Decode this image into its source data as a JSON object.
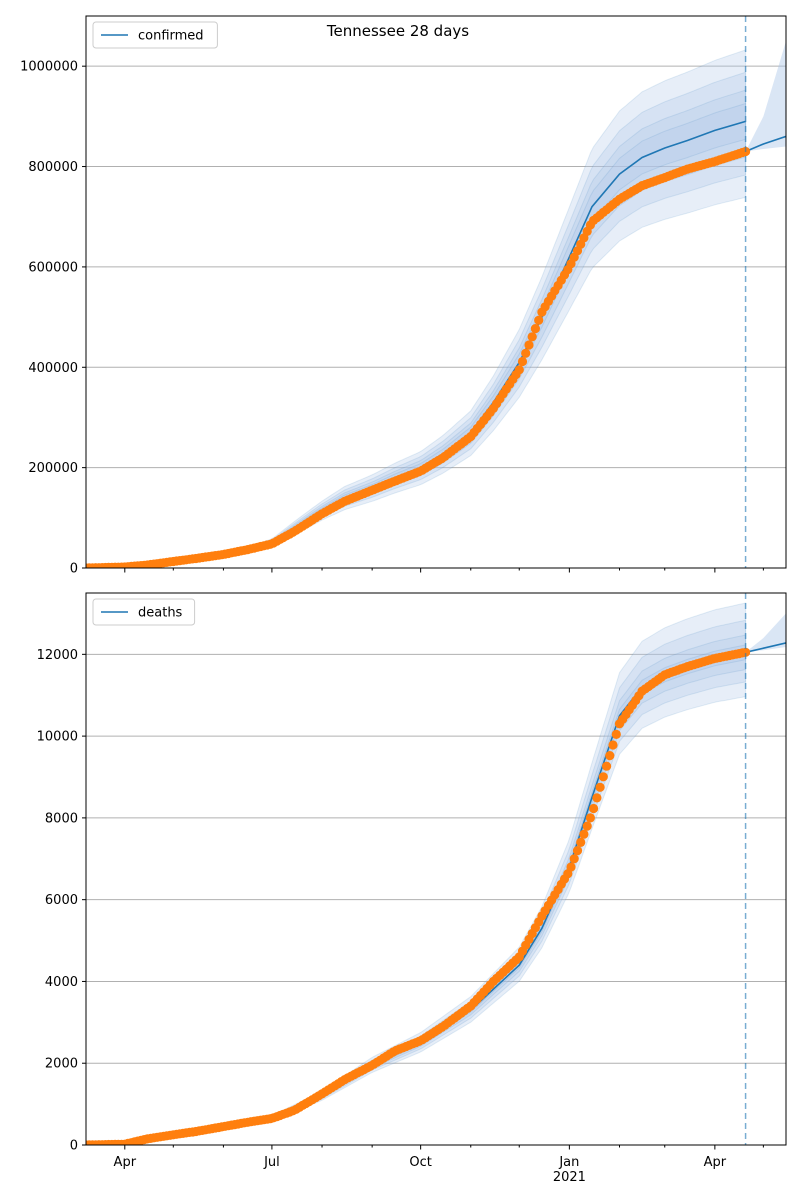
{
  "title": "Tennessee 28 days",
  "colors": {
    "model": "#1f77b4",
    "observed": "#ff7f0e",
    "band": "#aec7e8",
    "grid": "#b0b0b0",
    "vline": "#1f77b4"
  },
  "chart_data": [
    {
      "type": "line",
      "legend": "confirmed",
      "legend_position": "upper-left",
      "grid": "horizontal",
      "x_range": [
        "2020-03-08",
        "2021-05-15"
      ],
      "x_ticks": [
        {
          "date": "2020-04-01",
          "label": "Apr"
        },
        {
          "date": "2020-07-01",
          "label": "Jul"
        },
        {
          "date": "2020-10-01",
          "label": "Oct"
        },
        {
          "date": "2021-01-01",
          "label": "Jan\n2021"
        },
        {
          "date": "2021-04-01",
          "label": "Apr"
        }
      ],
      "y_range": [
        0,
        1100000
      ],
      "y_ticks": [
        0,
        200000,
        400000,
        600000,
        800000,
        1000000
      ],
      "y_tick_labels": [
        "0",
        "200000",
        "400000",
        "600000",
        "800000",
        "1000000"
      ],
      "forecast_start": "2021-04-20",
      "model_fit": {
        "x": [
          "2020-03-08",
          "2020-04-15",
          "2020-05-15",
          "2020-06-15",
          "2020-07-01",
          "2020-07-15",
          "2020-08-01",
          "2020-08-15",
          "2020-09-01",
          "2020-09-15",
          "2020-10-01",
          "2020-10-15",
          "2020-11-01",
          "2020-11-15",
          "2020-12-01",
          "2020-12-15",
          "2021-01-01",
          "2021-01-15",
          "2021-02-01",
          "2021-02-15",
          "2021-03-01",
          "2021-03-15",
          "2021-04-01",
          "2021-04-20"
        ],
        "y": [
          0,
          4000,
          15000,
          35000,
          50000,
          80000,
          115000,
          140000,
          160000,
          180000,
          200000,
          228000,
          270000,
          330000,
          410000,
          500000,
          620000,
          720000,
          785000,
          818000,
          837000,
          852000,
          872000,
          890000
        ]
      },
      "forecast": {
        "x": [
          "2021-04-20",
          "2021-05-01",
          "2021-05-15"
        ],
        "y": [
          830000,
          845000,
          860000
        ],
        "band_low": [
          830000,
          835000,
          840000
        ],
        "band_high": [
          830000,
          900000,
          1050000
        ]
      },
      "observed": {
        "x": [
          "2020-03-08",
          "2020-04-01",
          "2020-04-15",
          "2020-05-01",
          "2020-05-15",
          "2020-06-01",
          "2020-06-15",
          "2020-07-01",
          "2020-07-15",
          "2020-08-01",
          "2020-08-15",
          "2020-09-01",
          "2020-09-15",
          "2020-10-01",
          "2020-10-15",
          "2020-11-01",
          "2020-11-15",
          "2020-12-01",
          "2020-12-15",
          "2021-01-01",
          "2021-01-15",
          "2021-02-01",
          "2021-02-15",
          "2021-03-01",
          "2021-03-15",
          "2021-04-01",
          "2021-04-20"
        ],
        "y": [
          0,
          2000,
          6000,
          13000,
          19000,
          27000,
          36000,
          48000,
          73000,
          108000,
          133000,
          155000,
          173000,
          193000,
          220000,
          262000,
          318000,
          395000,
          510000,
          600000,
          690000,
          735000,
          762000,
          778000,
          795000,
          810000,
          830000
        ]
      },
      "bands": [
        {
          "low_factor": 0.96,
          "high_factor": 1.04
        },
        {
          "low_factor": 0.92,
          "high_factor": 1.07
        },
        {
          "low_factor": 0.88,
          "high_factor": 1.11
        },
        {
          "low_factor": 0.83,
          "high_factor": 1.16
        }
      ]
    },
    {
      "type": "line",
      "legend": "deaths",
      "legend_position": "upper-left",
      "grid": "horizontal",
      "x_range": [
        "2020-03-08",
        "2021-05-15"
      ],
      "x_ticks": [
        {
          "date": "2020-04-01",
          "label": "Apr"
        },
        {
          "date": "2020-07-01",
          "label": "Jul"
        },
        {
          "date": "2020-10-01",
          "label": "Oct"
        },
        {
          "date": "2021-01-01",
          "label": "Jan\n2021"
        },
        {
          "date": "2021-04-01",
          "label": "Apr"
        }
      ],
      "y_range": [
        0,
        13500
      ],
      "y_ticks": [
        0,
        2000,
        4000,
        6000,
        8000,
        10000,
        12000
      ],
      "y_tick_labels": [
        "0",
        "2000",
        "4000",
        "6000",
        "8000",
        "10000",
        "12000"
      ],
      "forecast_start": "2021-04-20",
      "model_fit": {
        "x": [
          "2020-03-08",
          "2020-04-01",
          "2020-05-01",
          "2020-06-01",
          "2020-07-01",
          "2020-08-01",
          "2020-09-01",
          "2020-10-01",
          "2020-11-01",
          "2020-12-01",
          "2020-12-15",
          "2021-01-01",
          "2021-01-15",
          "2021-02-01",
          "2021-02-15",
          "2021-03-01",
          "2021-03-15",
          "2021-04-01",
          "2021-04-20"
        ],
        "y": [
          0,
          30,
          250,
          450,
          650,
          1200,
          1950,
          2500,
          3300,
          4400,
          5300,
          6800,
          8500,
          10500,
          11200,
          11500,
          11700,
          11900,
          12050
        ]
      },
      "forecast": {
        "x": [
          "2021-04-20",
          "2021-05-01",
          "2021-05-15"
        ],
        "y": [
          12050,
          12150,
          12280
        ],
        "band_low": [
          12050,
          12100,
          12180
        ],
        "band_high": [
          12050,
          12400,
          13000
        ]
      },
      "observed": {
        "x": [
          "2020-03-08",
          "2020-04-01",
          "2020-04-15",
          "2020-05-01",
          "2020-05-15",
          "2020-06-01",
          "2020-06-15",
          "2020-07-01",
          "2020-07-15",
          "2020-08-01",
          "2020-08-15",
          "2020-09-01",
          "2020-09-15",
          "2020-10-01",
          "2020-10-15",
          "2020-11-01",
          "2020-11-15",
          "2020-12-01",
          "2020-12-15",
          "2021-01-01",
          "2021-01-15",
          "2021-02-01",
          "2021-02-15",
          "2021-03-01",
          "2021-03-15",
          "2021-04-01",
          "2021-04-20"
        ],
        "y": [
          0,
          20,
          150,
          250,
          330,
          450,
          550,
          650,
          850,
          1250,
          1600,
          1950,
          2300,
          2550,
          2900,
          3400,
          4000,
          4600,
          5600,
          6700,
          8100,
          10300,
          11100,
          11500,
          11700,
          11900,
          12050
        ]
      },
      "bands": [
        {
          "low_factor": 0.985,
          "high_factor": 1.015
        },
        {
          "low_factor": 0.965,
          "high_factor": 1.035
        },
        {
          "low_factor": 0.94,
          "high_factor": 1.065
        },
        {
          "low_factor": 0.91,
          "high_factor": 1.1
        }
      ]
    }
  ]
}
